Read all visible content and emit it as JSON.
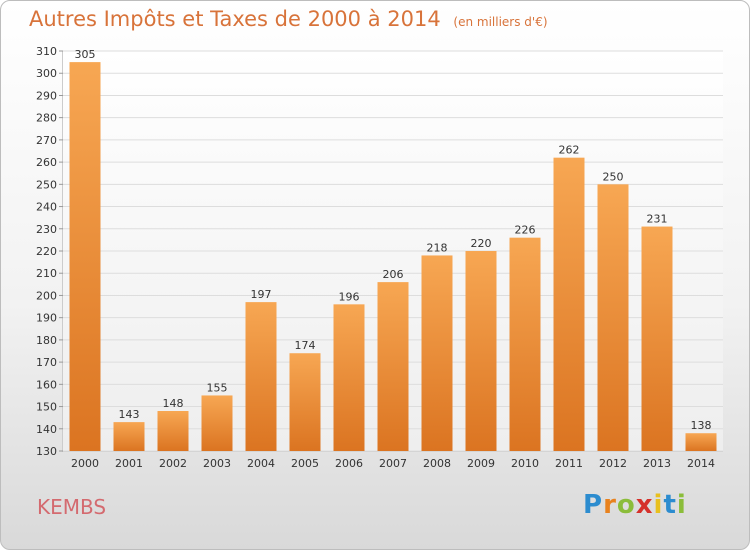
{
  "header": {
    "title": "Autres Impôts et Taxes de 2000 à 2014",
    "unit": "(en milliers d'€)"
  },
  "footer": {
    "town": "KEMBS",
    "logo": "Proxiti"
  },
  "colors": {
    "bar_top": "#f7a753",
    "bar_bottom": "#db7421",
    "title": "#d8733a",
    "town": "#d46a6f"
  },
  "chart_data": {
    "type": "bar",
    "title": "Autres Impôts et Taxes de 2000 à 2014",
    "categories": [
      "2000",
      "2001",
      "2002",
      "2003",
      "2004",
      "2005",
      "2006",
      "2007",
      "2008",
      "2009",
      "2010",
      "2011",
      "2012",
      "2013",
      "2014"
    ],
    "values": [
      305,
      143,
      148,
      155,
      197,
      174,
      196,
      206,
      218,
      220,
      226,
      262,
      250,
      231,
      138
    ],
    "ylim": [
      130,
      310
    ],
    "yticks": [
      130,
      140,
      150,
      160,
      170,
      180,
      190,
      200,
      210,
      220,
      230,
      240,
      250,
      260,
      270,
      280,
      290,
      300,
      310
    ],
    "grid": true,
    "xlabel": "",
    "ylabel": ""
  }
}
